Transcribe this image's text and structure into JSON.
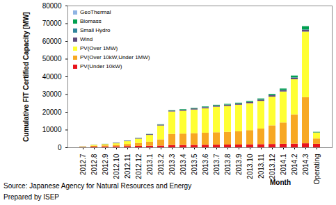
{
  "chart_data": {
    "type": "bar",
    "stacked": true,
    "x_label": "Month",
    "y_label": "Cumulative FIT Certified Capacity [MW]",
    "annotations": [
      "Source: Japanese Agency for Natural Resources and Energy",
      "Prepared by ISEP"
    ],
    "categories": [
      "2012.7",
      "2012.8",
      "2012.9",
      "2012.10",
      "2012.11",
      "2012.12",
      "2013.1",
      "2013.2",
      "2013.3",
      "2013.4",
      "2013.5",
      "2013.6",
      "2013.7",
      "2013.8",
      "2013.9",
      "2013.10",
      "2013.11",
      "2013.12",
      "2014.1",
      "2014.2",
      "2014.3",
      "Operating"
    ],
    "series": [
      {
        "name": "PV(Under 10kW)",
        "color": "#e8141c",
        "values": [
          200,
          400,
          500,
          600,
          700,
          800,
          900,
          1000,
          1300,
          1350,
          1400,
          1450,
          1500,
          1550,
          1600,
          1700,
          1800,
          1900,
          2000,
          2100,
          2300,
          2000
        ]
      },
      {
        "name": "PV(Over 10kW,Under 1MW)",
        "color": "#f7a823",
        "values": [
          150,
          500,
          600,
          800,
          1200,
          1700,
          2300,
          3500,
          6300,
          6400,
          6600,
          6800,
          7000,
          7200,
          7500,
          8000,
          8800,
          10500,
          12000,
          16500,
          26000,
          3000
        ]
      },
      {
        "name": "PV(Over 1MW)",
        "color": "#ffff33",
        "values": [
          150,
          500,
          700,
          900,
          1600,
          2400,
          3800,
          7800,
          12600,
          12900,
          13300,
          13800,
          14400,
          14600,
          14900,
          15200,
          15600,
          16200,
          17500,
          19800,
          37000,
          3300
        ]
      },
      {
        "name": "Wind",
        "color": "#5f4b7d",
        "values": [
          50,
          80,
          150,
          250,
          250,
          300,
          400,
          500,
          500,
          550,
          600,
          600,
          600,
          650,
          650,
          700,
          700,
          800,
          800,
          900,
          1000,
          100
        ]
      },
      {
        "name": "Small Hydro",
        "color": "#31859c",
        "values": [
          10,
          20,
          20,
          30,
          30,
          40,
          50,
          60,
          80,
          100,
          120,
          120,
          130,
          130,
          140,
          150,
          160,
          170,
          180,
          200,
          250,
          50
        ]
      },
      {
        "name": "Biomass",
        "color": "#00a050",
        "values": [
          20,
          20,
          30,
          50,
          60,
          80,
          100,
          150,
          200,
          250,
          300,
          300,
          350,
          380,
          400,
          450,
          500,
          600,
          700,
          1000,
          1800,
          300
        ]
      },
      {
        "name": "GeoThermal",
        "color": "#8eb4e3",
        "values": [
          0,
          0,
          0,
          0,
          0,
          0,
          0,
          0,
          4,
          4,
          4,
          4,
          4,
          4,
          4,
          4,
          10,
          10,
          10,
          10,
          20,
          5
        ]
      }
    ],
    "ylim": [
      0,
      80000
    ],
    "yticks": [
      0,
      10000,
      20000,
      30000,
      40000,
      50000,
      60000,
      70000,
      80000
    ],
    "grid": false,
    "legend": "top-left",
    "data_labels": false
  }
}
